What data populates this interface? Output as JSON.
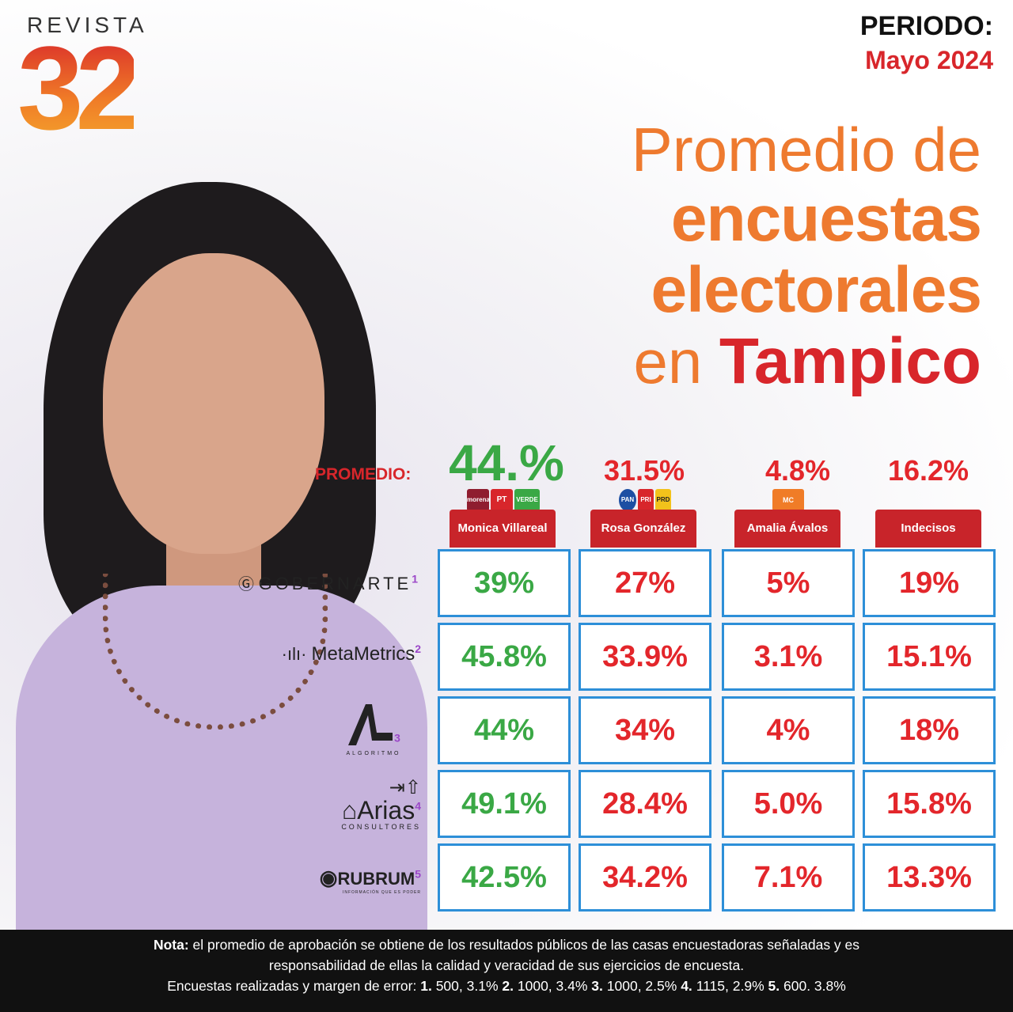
{
  "brand": {
    "word": "REVISTA",
    "number": "32"
  },
  "period": {
    "label": "PERIODO:",
    "value": "Mayo 2024"
  },
  "title": {
    "line1": "Promedio de",
    "line2": "encuestas",
    "line3": "electorales",
    "line4_prefix": "en",
    "line4_city": "Tampico"
  },
  "promedio_label": "PROMEDIO:",
  "colors": {
    "accent_orange": "#ee7a2f",
    "brand_red": "#d8262b",
    "win_green": "#3aa845",
    "cell_border": "#2d8fd8"
  },
  "parties": {
    "col1": [
      "morena",
      "PT",
      "VERDE"
    ],
    "col2": [
      "PAN",
      "PRI",
      "PRD"
    ],
    "col3": [
      "MC"
    ]
  },
  "chart_data": {
    "type": "table",
    "categories": [
      "Monica Villareal",
      "Rosa González",
      "Amalia Ávalos",
      "Indecisos"
    ],
    "averages": [
      "44.%",
      "31.5%",
      "4.8%",
      "16.2%"
    ],
    "pollsters": [
      {
        "name": "GOBERNARTE",
        "index": "1",
        "values": [
          "39%",
          "27%",
          "5%",
          "19%"
        ]
      },
      {
        "name": "MetaMetrics",
        "index": "2",
        "values": [
          "45.8%",
          "33.9%",
          "3.1%",
          "15.1%"
        ]
      },
      {
        "name": "ALGORITMO",
        "index": "3",
        "values": [
          "44%",
          "34%",
          "4%",
          "18%"
        ]
      },
      {
        "name": "Arias",
        "sub": "CONSULTORES",
        "index": "4",
        "values": [
          "49.1%",
          "28.4%",
          "5.0%",
          "15.8%"
        ]
      },
      {
        "name": "RUBRUM",
        "sub": "INFORMACIÓN QUE ES PODER",
        "index": "5",
        "values": [
          "42.5%",
          "34.2%",
          "7.1%",
          "13.3%"
        ]
      }
    ]
  },
  "footer": {
    "nota_label": "Nota:",
    "line1": "el promedio de aprobación se obtiene de los resultados públicos de las casas encuestadoras señaladas y es",
    "line2": "responsabilidad de ellas la calidad y veracidad de sus ejercicios de encuesta.",
    "line3_prefix": "Encuestas realizadas y margen de error:",
    "margins": [
      {
        "n": "1.",
        "v": "500, 3.1%"
      },
      {
        "n": "2.",
        "v": "1000, 3.4%"
      },
      {
        "n": "3.",
        "v": "1000, 2.5%"
      },
      {
        "n": "4.",
        "v": "1115, 2.9%"
      },
      {
        "n": "5.",
        "v": "600. 3.8%"
      }
    ]
  }
}
